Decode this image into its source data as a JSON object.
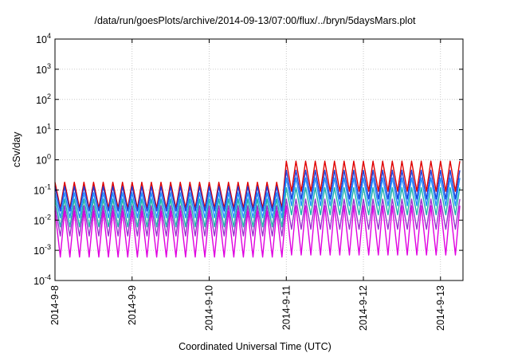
{
  "chart_data": {
    "type": "line",
    "title": "/data/run/goesPlots/archive/2014-09-13/07:00/flux/../bryn/5daysMars.plot",
    "xlabel": "Coordinated Universal Time (UTC)",
    "ylabel": "cSv/day",
    "y_scale": "log",
    "ylim": [
      0.0001,
      10000
    ],
    "y_ticks": [
      {
        "value": 0.0001,
        "base": "10",
        "exp": "-4"
      },
      {
        "value": 0.001,
        "base": "10",
        "exp": "-3"
      },
      {
        "value": 0.01,
        "base": "10",
        "exp": "-2"
      },
      {
        "value": 0.1,
        "base": "10",
        "exp": "-1"
      },
      {
        "value": 1,
        "base": "10",
        "exp": "0"
      },
      {
        "value": 10,
        "base": "10",
        "exp": "1"
      },
      {
        "value": 100,
        "base": "10",
        "exp": "2"
      },
      {
        "value": 1000,
        "base": "10",
        "exp": "3"
      },
      {
        "value": 10000,
        "base": "10",
        "exp": "4"
      }
    ],
    "xlim": [
      "2014-09-08 00:00",
      "2014-09-13 07:00"
    ],
    "x_ticks": [
      "2014-9-8",
      "2014-9-9",
      "2014-9-10",
      "2014-9-11",
      "2014-9-12",
      "2014-9-13"
    ],
    "grid": true,
    "period_hours": 3,
    "step_change_date": "2014-09-11 00:00",
    "series": [
      {
        "color": "#e00000",
        "peak_before": 0.18,
        "trough_before": 0.025,
        "peak_after": 0.9,
        "trough_after": 0.09
      },
      {
        "color": "#1f3fd8",
        "peak_before": 0.13,
        "trough_before": 0.02,
        "peak_after": 0.45,
        "trough_after": 0.05
      },
      {
        "color": "#1e90ff",
        "peak_before": 0.08,
        "trough_before": 0.012,
        "peak_after": 0.25,
        "trough_after": 0.03
      },
      {
        "color": "#20b2aa",
        "peak_before": 0.05,
        "trough_before": 0.006,
        "peak_after": 0.12,
        "trough_after": 0.015
      },
      {
        "color": "#9932cc",
        "peak_before": 0.03,
        "trough_before": 0.003,
        "peak_after": 0.05,
        "trough_after": 0.005
      },
      {
        "color": "#e000e0",
        "peak_before": 0.02,
        "trough_before": 0.0006,
        "peak_after": 0.03,
        "trough_after": 0.0007
      }
    ]
  }
}
